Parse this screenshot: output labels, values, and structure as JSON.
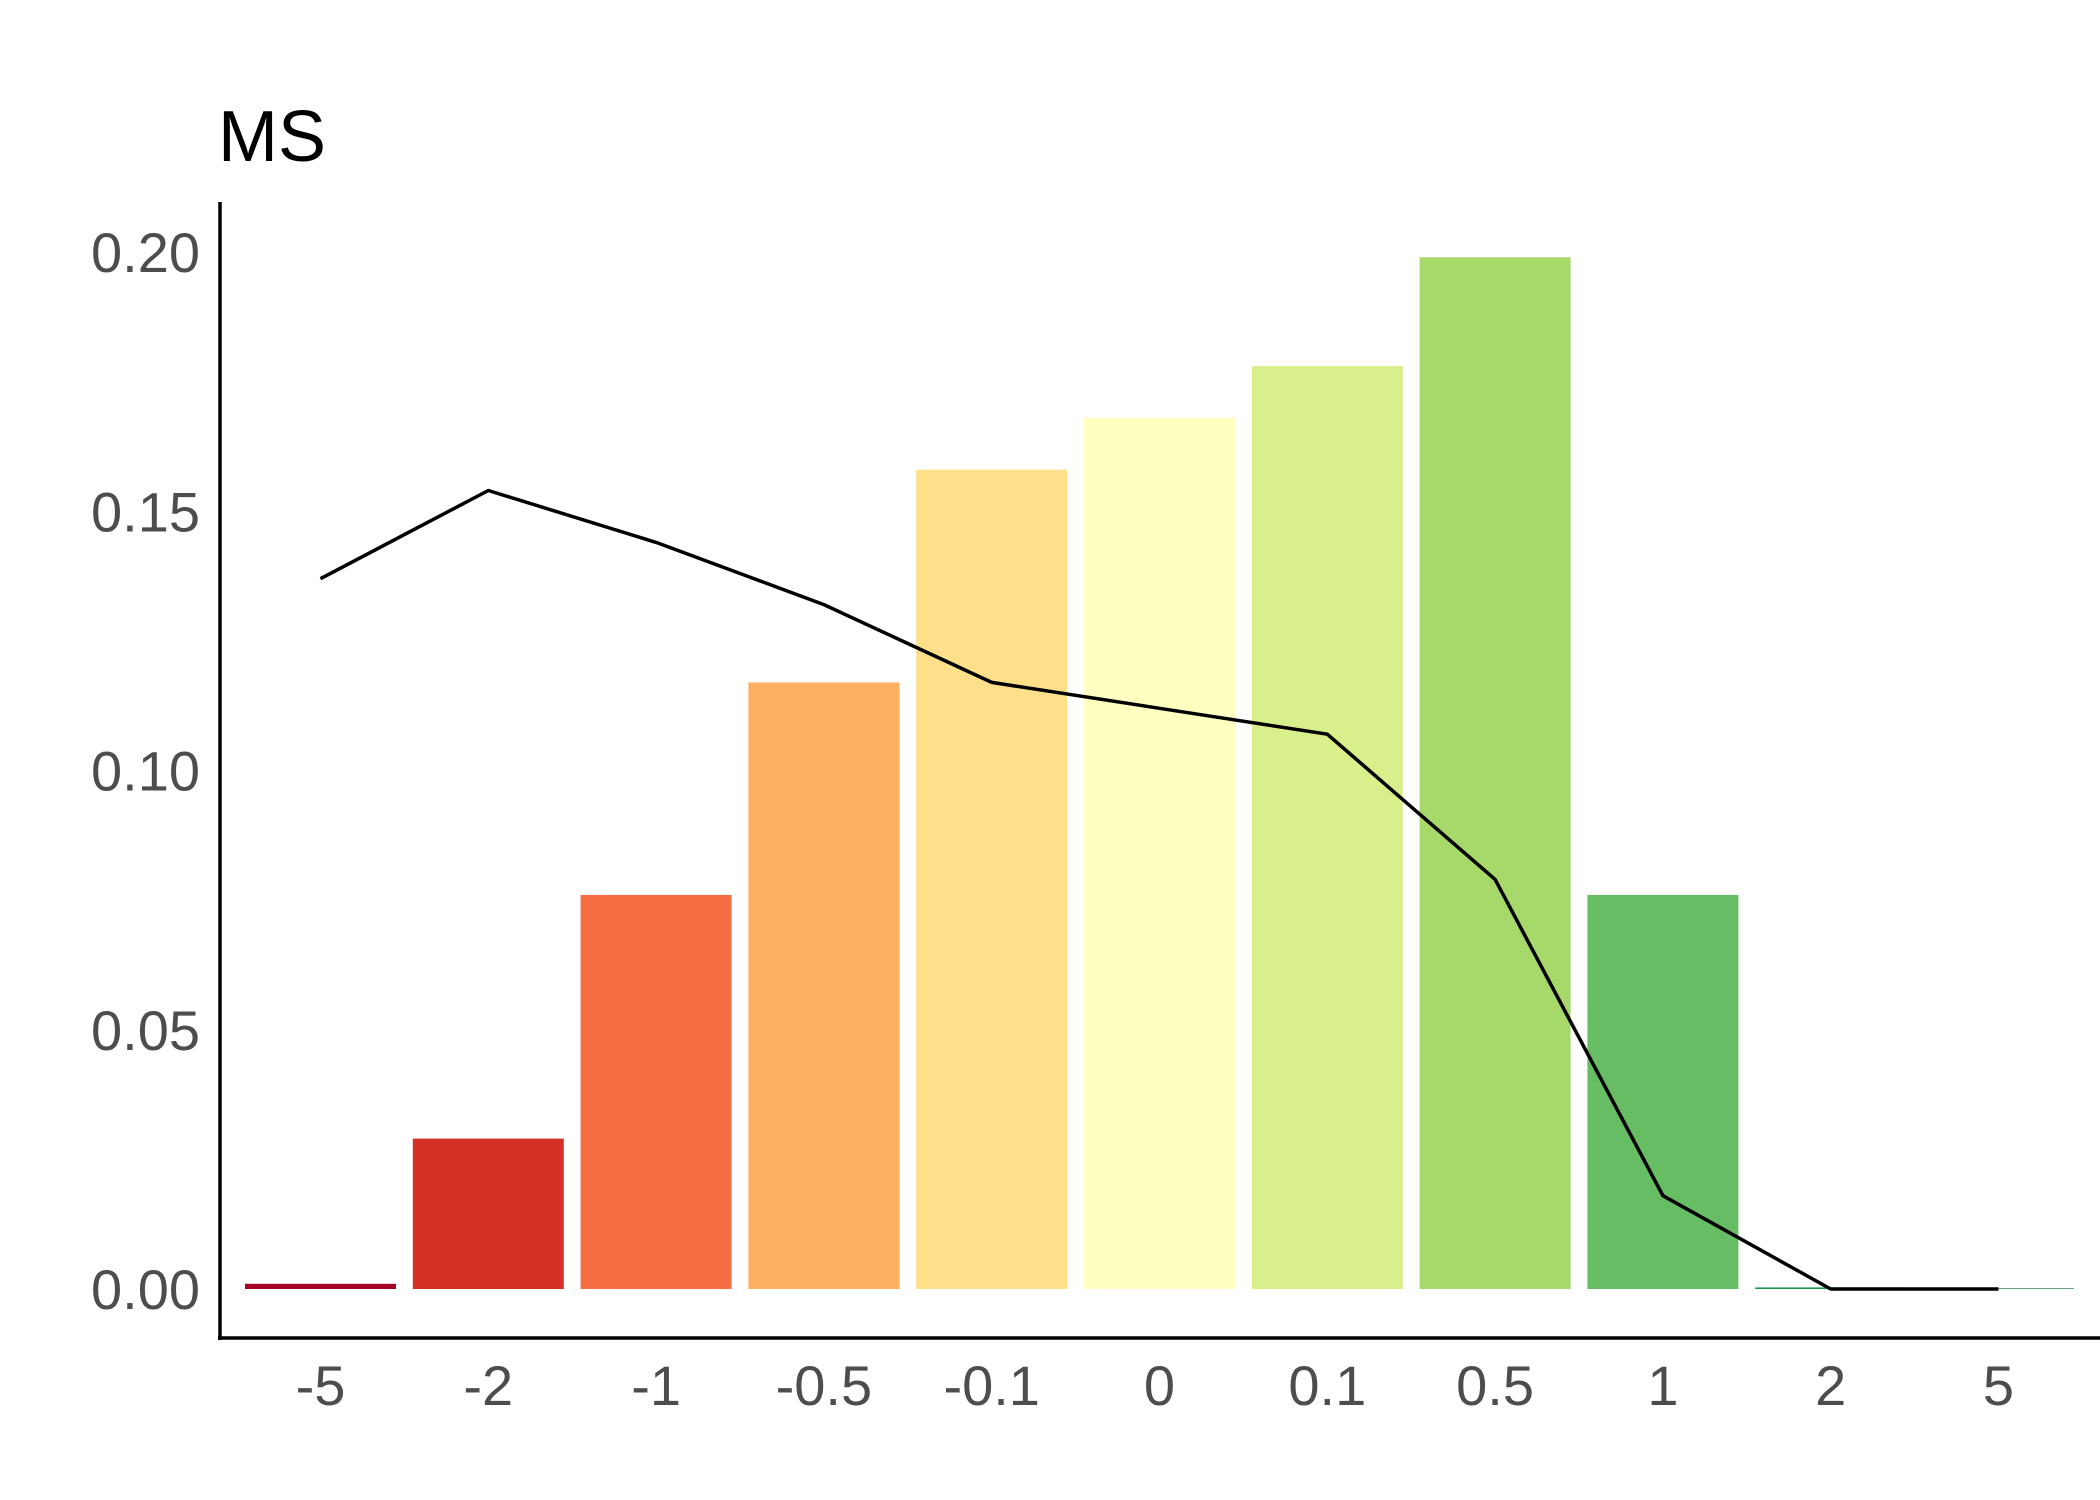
{
  "chart_data": {
    "type": "bar",
    "title": "MS",
    "xlabel": "",
    "ylabel": "",
    "categories": [
      "-5",
      "-2",
      "-1",
      "-0.5",
      "-0.1",
      "0",
      "0.1",
      "0.5",
      "1",
      "2",
      "5"
    ],
    "series": [
      {
        "type": "bar",
        "values": [
          0.001,
          0.029,
          0.076,
          0.117,
          0.158,
          0.168,
          0.178,
          0.199,
          0.076,
          0.0003,
          0.0
        ]
      },
      {
        "type": "line",
        "values": [
          0.137,
          0.154,
          0.144,
          0.132,
          0.117,
          0.112,
          0.107,
          0.079,
          0.018,
          0.0,
          0.0
        ]
      }
    ],
    "bar_colors": [
      "#a50026",
      "#d73027",
      "#f46d43",
      "#fdae61",
      "#fee08b",
      "#ffffbf",
      "#d9ef8b",
      "#a6d96a",
      "#66bd63",
      "#1a9850",
      "#006837"
    ],
    "line_color": "#000000",
    "yticks": [
      "0.00",
      "0.05",
      "0.10",
      "0.15",
      "0.20"
    ],
    "ylim": [
      -0.0095,
      0.209
    ],
    "grid": false,
    "legend": "none"
  }
}
